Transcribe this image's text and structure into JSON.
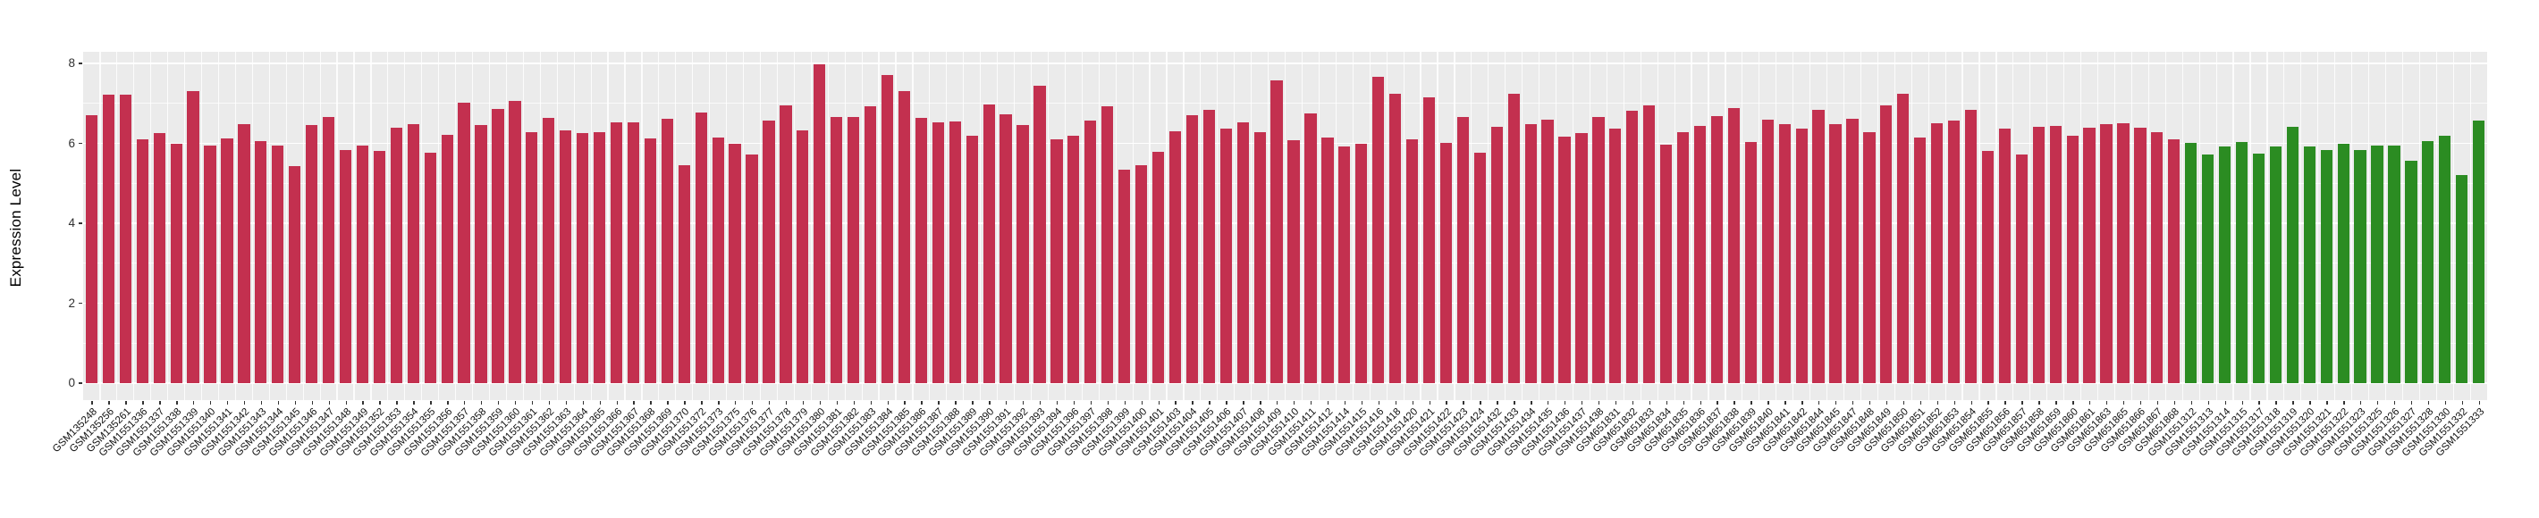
{
  "figure": {
    "background_color": "#FFFFFF",
    "panel_background_color": "#EBEBEB",
    "gridline_color": "#FFFFFF",
    "axis_text_color": "#303030",
    "x_label_color": "#111111"
  },
  "chart_data": {
    "type": "bar",
    "title": "",
    "xlabel": "",
    "ylabel": "Expression Level",
    "yticks": [
      0,
      2,
      4,
      6,
      8
    ],
    "ylim": [
      0,
      8.3
    ],
    "grid": true,
    "legend": false,
    "bar_colors": {
      "red": "#C3304F",
      "green": "#2B8C22"
    },
    "red_count": 124,
    "categories": [
      "GSM135248",
      "GSM135256",
      "GSM135261",
      "GSM1551336",
      "GSM1551337",
      "GSM1551338",
      "GSM1551339",
      "GSM1551340",
      "GSM1551341",
      "GSM1551342",
      "GSM1551343",
      "GSM1551344",
      "GSM1551345",
      "GSM1551346",
      "GSM1551347",
      "GSM1551348",
      "GSM1551349",
      "GSM1551352",
      "GSM1551353",
      "GSM1551354",
      "GSM1551355",
      "GSM1551356",
      "GSM1551357",
      "GSM1551358",
      "GSM1551359",
      "GSM1551360",
      "GSM1551361",
      "GSM1551362",
      "GSM1551363",
      "GSM1551364",
      "GSM1551365",
      "GSM1551366",
      "GSM1551367",
      "GSM1551368",
      "GSM1551369",
      "GSM1551370",
      "GSM1551372",
      "GSM1551373",
      "GSM1551375",
      "GSM1551376",
      "GSM1551377",
      "GSM1551378",
      "GSM1551379",
      "GSM1551380",
      "GSM1551381",
      "GSM1551382",
      "GSM1551383",
      "GSM1551384",
      "GSM1551385",
      "GSM1551386",
      "GSM1551387",
      "GSM1551388",
      "GSM1551389",
      "GSM1551390",
      "GSM1551391",
      "GSM1551392",
      "GSM1551393",
      "GSM1551394",
      "GSM1551396",
      "GSM1551397",
      "GSM1551398",
      "GSM1551399",
      "GSM1551400",
      "GSM1551401",
      "GSM1551403",
      "GSM1551404",
      "GSM1551405",
      "GSM1551406",
      "GSM1551407",
      "GSM1551408",
      "GSM1551409",
      "GSM1551410",
      "GSM1551411",
      "GSM1551412",
      "GSM1551414",
      "GSM1551415",
      "GSM1551416",
      "GSM1551418",
      "GSM1551420",
      "GSM1551421",
      "GSM1551422",
      "GSM1551423",
      "GSM1551424",
      "GSM1551432",
      "GSM1551433",
      "GSM1551434",
      "GSM1551435",
      "GSM1551436",
      "GSM1551437",
      "GSM1551438",
      "GSM651831",
      "GSM651832",
      "GSM651833",
      "GSM651834",
      "GSM651835",
      "GSM651836",
      "GSM651837",
      "GSM651838",
      "GSM651839",
      "GSM651840",
      "GSM651841",
      "GSM651842",
      "GSM651844",
      "GSM651845",
      "GSM651847",
      "GSM651848",
      "GSM651849",
      "GSM651850",
      "GSM651851",
      "GSM651852",
      "GSM651853",
      "GSM651854",
      "GSM651855",
      "GSM651856",
      "GSM651857",
      "GSM651858",
      "GSM651859",
      "GSM651860",
      "GSM651861",
      "GSM651863",
      "GSM651865",
      "GSM651866",
      "GSM651867",
      "GSM651868",
      "GSM1551312",
      "GSM1551313",
      "GSM1551314",
      "GSM1551315",
      "GSM1551317",
      "GSM1551318",
      "GSM1551319",
      "GSM1551320",
      "GSM1551321",
      "GSM1551322",
      "GSM1551323",
      "GSM1551325",
      "GSM1551326",
      "GSM1551327",
      "GSM1551328",
      "GSM1551330",
      "GSM1551332",
      "GSM1551333"
    ],
    "values": [
      6.7,
      7.22,
      7.22,
      6.11,
      6.26,
      6.0,
      7.3,
      5.94,
      6.13,
      6.48,
      6.06,
      5.95,
      5.42,
      6.45,
      6.67,
      5.83,
      5.94,
      5.81,
      6.39,
      6.48,
      5.76,
      6.22,
      7.02,
      6.45,
      6.86,
      7.06,
      6.28,
      6.64,
      6.32,
      6.26,
      6.29,
      6.52,
      6.52,
      6.12,
      6.61,
      5.46,
      6.78,
      6.14,
      5.98,
      5.72,
      6.58,
      6.96,
      6.32,
      7.98,
      6.65,
      6.65,
      6.93,
      7.7,
      7.3,
      6.63,
      6.52,
      6.55,
      6.2,
      6.97,
      6.73,
      6.45,
      7.45,
      6.09,
      6.2,
      6.56,
      6.93,
      5.35,
      5.46,
      5.79,
      6.3,
      6.7,
      6.84,
      6.38,
      6.52,
      6.29,
      7.57,
      6.07,
      6.75,
      6.15,
      5.92,
      6.0,
      7.67,
      7.25,
      6.09,
      7.15,
      6.02,
      6.65,
      5.77,
      6.42,
      7.25,
      6.48,
      6.59,
      6.17,
      6.26,
      6.65,
      6.38,
      6.82,
      6.95,
      5.97,
      6.29,
      6.43,
      6.69,
      6.88,
      6.03,
      6.59,
      6.48,
      6.37,
      6.83,
      6.48,
      6.62,
      6.27,
      6.94,
      7.24,
      6.15,
      6.5,
      6.57,
      6.83,
      5.81,
      6.37,
      5.72,
      6.42,
      6.43,
      6.18,
      6.39,
      6.49,
      6.5,
      6.4,
      6.27,
      6.1,
      6.02,
      5.72,
      5.92,
      6.03,
      5.74,
      5.92,
      6.41,
      5.92,
      5.83,
      6.0,
      5.83,
      5.95,
      5.95,
      5.57,
      6.05,
      6.2,
      5.21,
      6.58
    ]
  }
}
